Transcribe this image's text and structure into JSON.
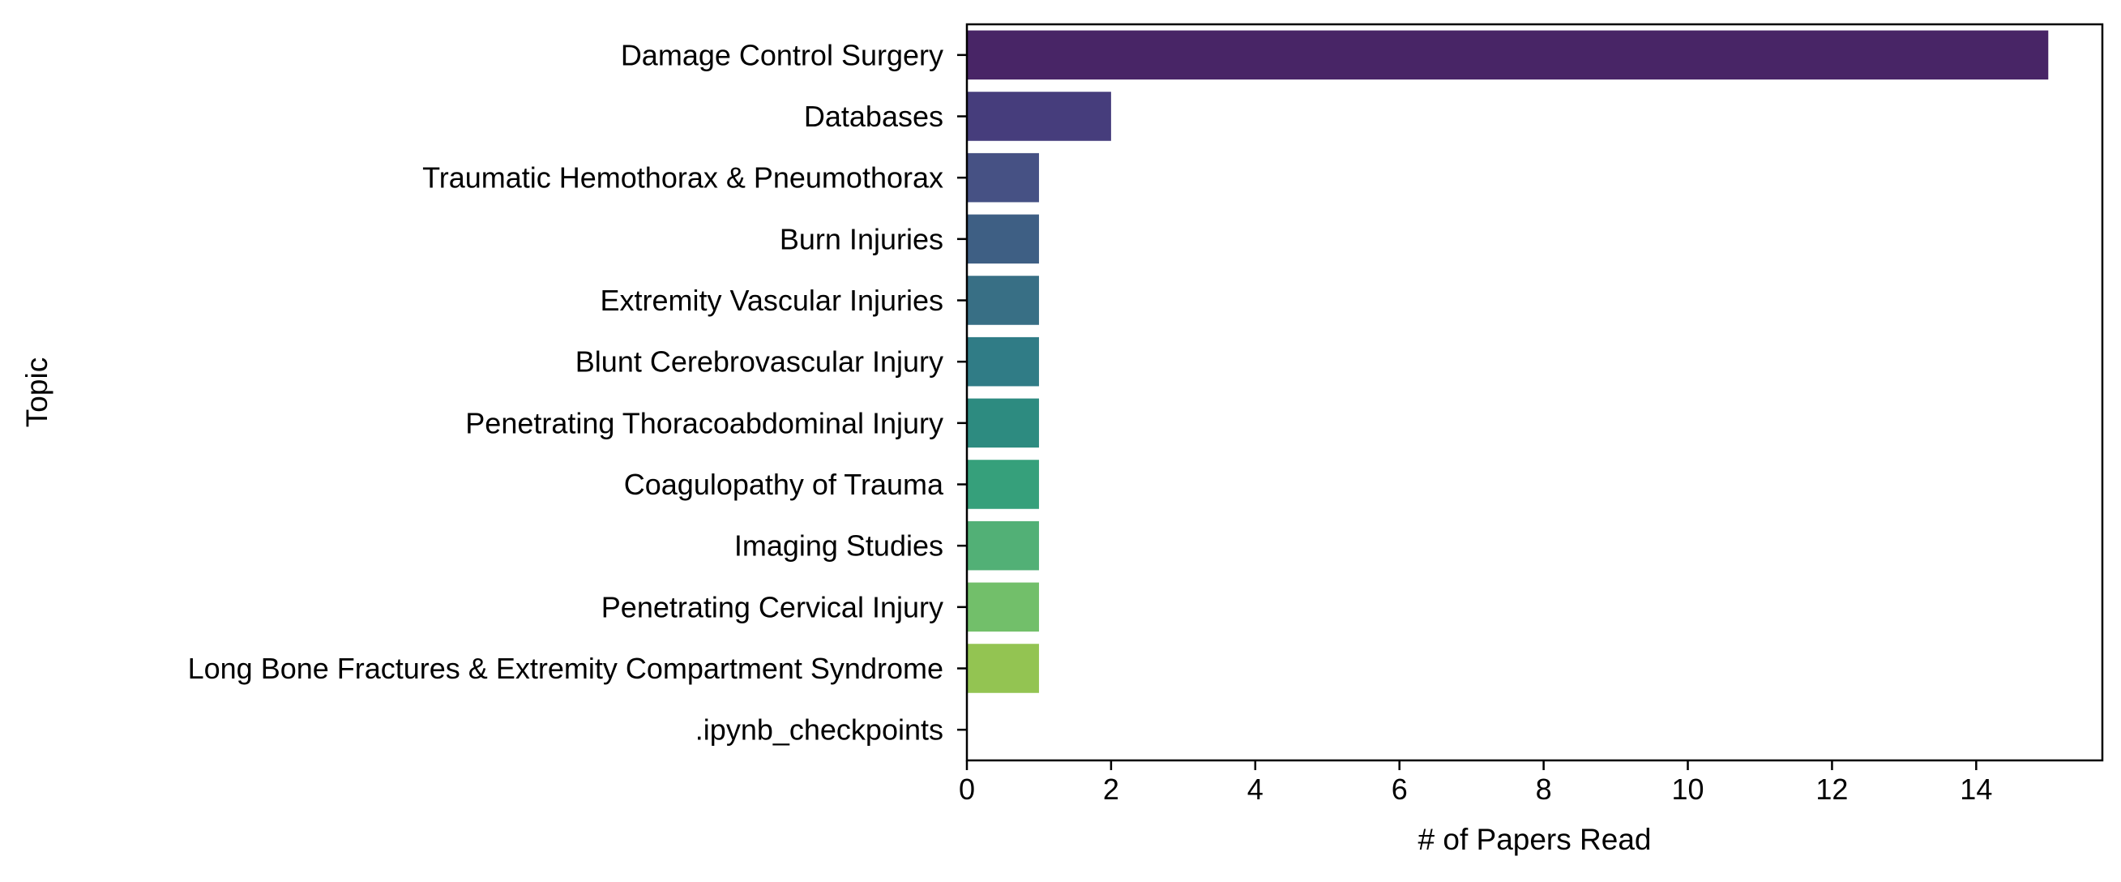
{
  "chart_data": {
    "type": "bar",
    "orientation": "horizontal",
    "title": "",
    "xlabel": "# of Papers Read",
    "ylabel": "Topic",
    "xlim": [
      0,
      15.75
    ],
    "xticks": [
      0,
      2,
      4,
      6,
      8,
      10,
      12,
      14
    ],
    "grid": false,
    "legend": "none",
    "categories": [
      "Damage Control Surgery",
      "Databases",
      "Traumatic Hemothorax & Pneumothorax",
      "Burn Injuries",
      "Extremity Vascular Injuries",
      "Blunt Cerebrovascular Injury",
      "Penetrating Thoracoabdominal Injury",
      "Coagulopathy of Trauma",
      "Imaging Studies",
      "Penetrating Cervical Injury",
      "Long Bone Fractures & Extremity Compartment Syndrome",
      ".ipynb_checkpoints"
    ],
    "values": [
      15,
      2,
      1,
      1,
      1,
      1,
      1,
      1,
      1,
      1,
      1,
      0
    ],
    "colors": [
      "#482566",
      "#463d7c",
      "#465184",
      "#3e5f84",
      "#386f85",
      "#307c86",
      "#2d8b80",
      "#36a07b",
      "#52b076",
      "#72bf6a",
      "#93c452",
      "#b9d533"
    ]
  }
}
